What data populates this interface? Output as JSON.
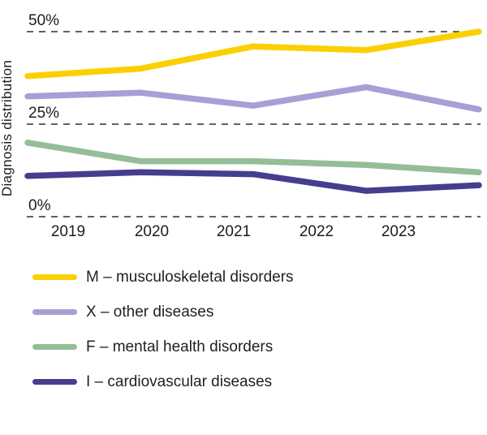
{
  "chart_data": {
    "type": "line",
    "title": "",
    "ylabel": "Diagnosis distribution",
    "xlabel": "",
    "ylim": [
      0,
      52
    ],
    "grid": "horizontal-dashed",
    "legend_position": "bottom-left",
    "y_ticks": [
      {
        "label": "50%",
        "value": 50
      },
      {
        "label": "25%",
        "value": 25
      },
      {
        "label": "0%",
        "value": 0
      }
    ],
    "x_tick_labels": [
      "2019",
      "2020",
      "2021",
      "2022",
      "2023"
    ],
    "series": [
      {
        "key": "M",
        "name": "M – musculoskeletal disorders",
        "color": "#FAD005",
        "values": [
          38,
          40,
          46,
          45,
          50
        ]
      },
      {
        "key": "X",
        "name": "X – other diseases",
        "color": "#A79FD6",
        "values": [
          32.5,
          33.5,
          30,
          35,
          29
        ]
      },
      {
        "key": "F",
        "name": "F – mental health disorders",
        "color": "#93BE98",
        "values": [
          20,
          15,
          15,
          14,
          12
        ]
      },
      {
        "key": "I",
        "name": "I – cardiovascular diseases",
        "color": "#453E8E",
        "values": [
          11,
          12,
          11.5,
          7,
          8.5
        ]
      }
    ]
  },
  "style": {
    "gridline_color": "#2e2e2e",
    "text_color": "#1c1c1c"
  }
}
